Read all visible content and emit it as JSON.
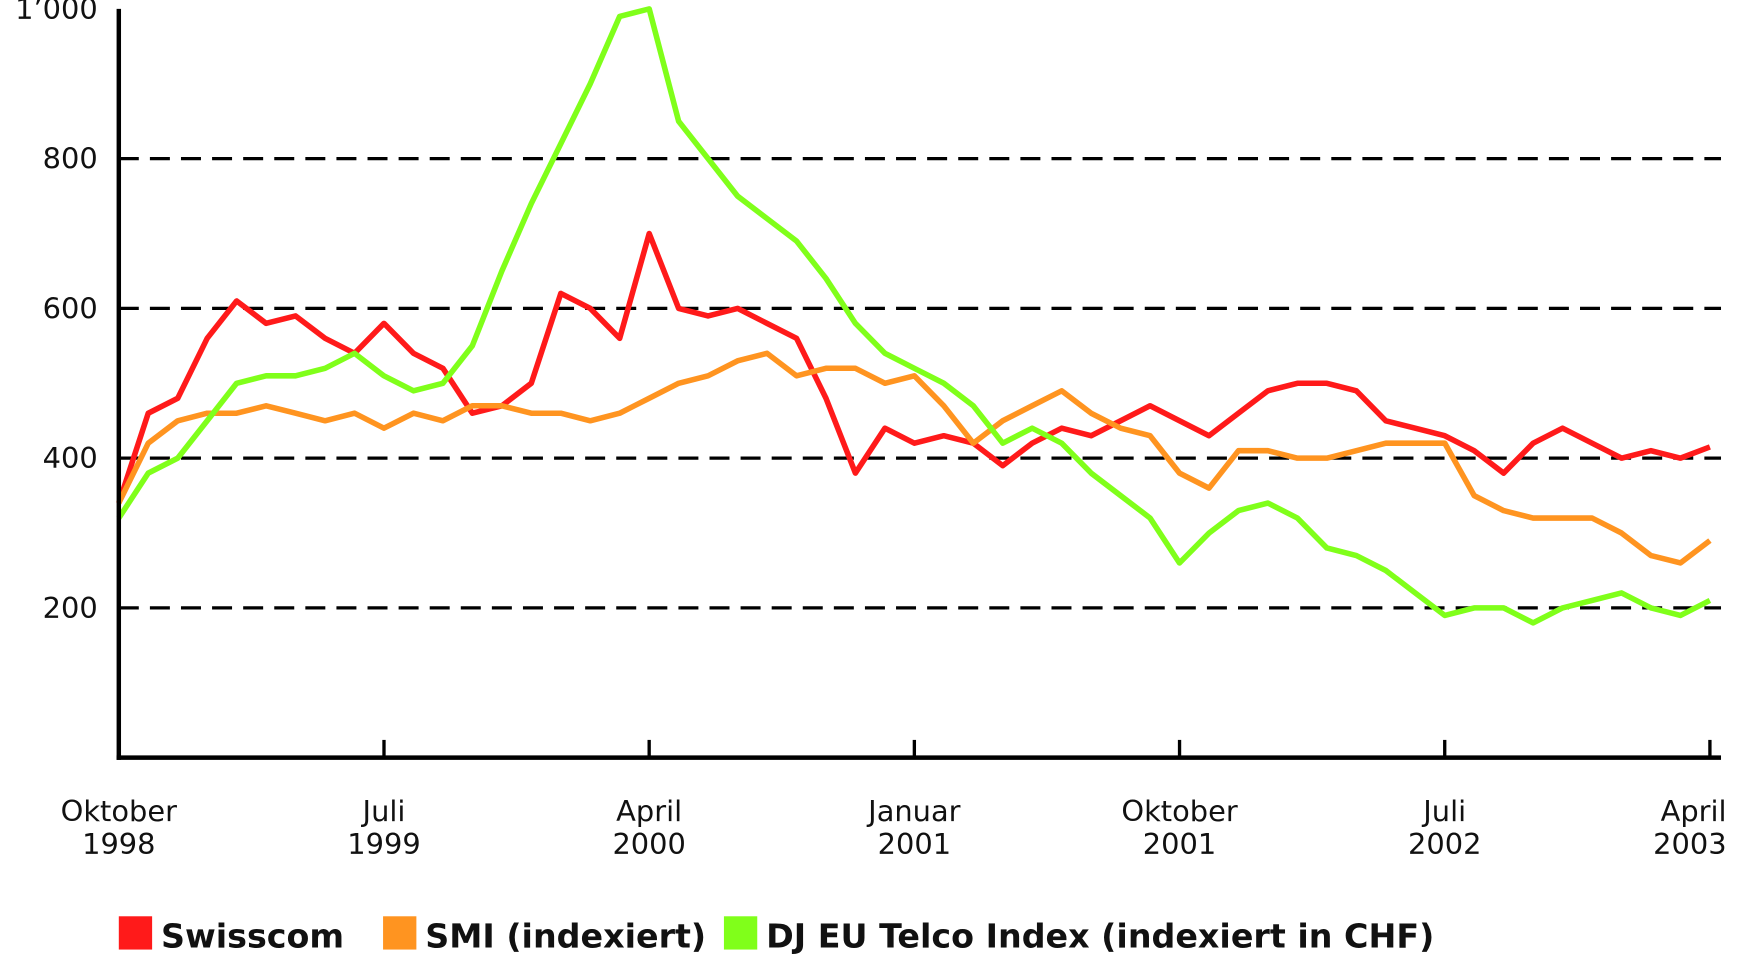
{
  "chart_data": {
    "type": "line",
    "x": [
      "1998-10",
      "1998-11",
      "1998-12",
      "1999-01",
      "1999-02",
      "1999-03",
      "1999-04",
      "1999-05",
      "1999-06",
      "1999-07",
      "1999-08",
      "1999-09",
      "1999-10",
      "1999-11",
      "1999-12",
      "2000-01",
      "2000-02",
      "2000-03",
      "2000-04",
      "2000-05",
      "2000-06",
      "2000-07",
      "2000-08",
      "2000-09",
      "2000-10",
      "2000-11",
      "2000-12",
      "2001-01",
      "2001-02",
      "2001-03",
      "2001-04",
      "2001-05",
      "2001-06",
      "2001-07",
      "2001-08",
      "2001-09",
      "2001-10",
      "2001-11",
      "2001-12",
      "2002-01",
      "2002-02",
      "2002-03",
      "2002-04",
      "2002-05",
      "2002-06",
      "2002-07",
      "2002-08",
      "2002-09",
      "2002-10",
      "2002-11",
      "2002-12",
      "2003-01",
      "2003-02",
      "2003-03",
      "2003-04"
    ],
    "series": [
      {
        "name": "Swisscom",
        "color": "#ff1a1a",
        "values": [
          340,
          460,
          480,
          560,
          610,
          580,
          590,
          560,
          540,
          580,
          540,
          520,
          460,
          470,
          500,
          620,
          600,
          560,
          700,
          600,
          590,
          600,
          580,
          560,
          480,
          380,
          440,
          420,
          430,
          420,
          390,
          420,
          440,
          430,
          450,
          470,
          450,
          430,
          460,
          490,
          500,
          500,
          490,
          450,
          440,
          430,
          410,
          380,
          420,
          440,
          420,
          400,
          410,
          400,
          415
        ]
      },
      {
        "name": "SMI (indexiert)",
        "color": "#ff9420",
        "values": [
          340,
          420,
          450,
          460,
          460,
          470,
          460,
          450,
          460,
          440,
          460,
          450,
          470,
          470,
          460,
          460,
          450,
          460,
          480,
          500,
          510,
          530,
          540,
          510,
          520,
          520,
          500,
          510,
          470,
          420,
          450,
          470,
          490,
          460,
          440,
          430,
          380,
          360,
          410,
          410,
          400,
          400,
          410,
          420,
          420,
          420,
          350,
          330,
          320,
          320,
          320,
          300,
          270,
          260,
          290
        ]
      },
      {
        "name": "DJ EU Telco Index (indexiert in CHF)",
        "color": "#80ff1a",
        "values": [
          320,
          380,
          400,
          450,
          500,
          510,
          510,
          520,
          540,
          510,
          490,
          500,
          550,
          650,
          740,
          820,
          900,
          990,
          1000,
          850,
          800,
          750,
          720,
          690,
          640,
          580,
          540,
          520,
          500,
          470,
          420,
          440,
          420,
          380,
          350,
          320,
          260,
          300,
          330,
          340,
          320,
          280,
          270,
          250,
          220,
          190,
          200,
          200,
          180,
          200,
          210,
          220,
          200,
          190,
          210
        ]
      }
    ],
    "xticks": [
      {
        "value": "1998-10",
        "label": [
          "Oktober",
          "1998"
        ]
      },
      {
        "value": "1999-07",
        "label": [
          "Juli",
          "1999"
        ]
      },
      {
        "value": "2000-04",
        "label": [
          "April",
          "2000"
        ]
      },
      {
        "value": "2001-01",
        "label": [
          "Januar",
          "2001"
        ]
      },
      {
        "value": "2001-10",
        "label": [
          "Oktober",
          "2001"
        ]
      },
      {
        "value": "2002-07",
        "label": [
          "Juli",
          "2002"
        ]
      },
      {
        "value": "2003-04",
        "label": [
          "April",
          "2003"
        ]
      }
    ],
    "ylim": [
      0,
      1000
    ],
    "yticks": [
      200,
      400,
      600,
      800,
      {
        "value": 1000,
        "label": "1’000"
      }
    ],
    "grid": true
  }
}
